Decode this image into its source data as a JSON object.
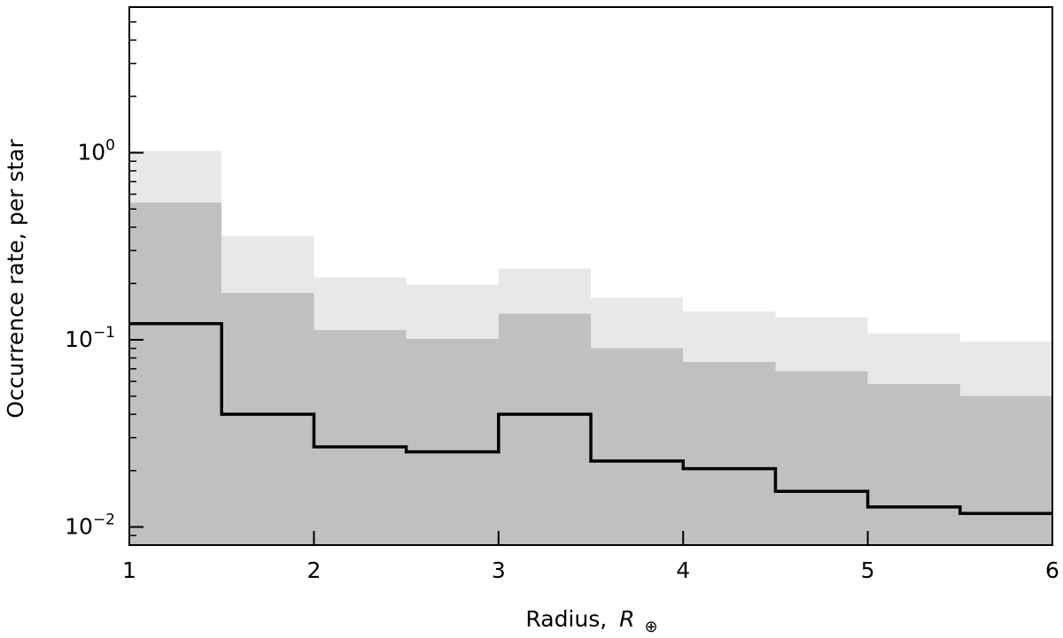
{
  "chart_data": {
    "type": "step",
    "xlabel": "Radius,",
    "xlabel_symbol": "R",
    "xlabel_subscript": "⊕",
    "ylabel": "Occurrence rate, per star",
    "xlim": [
      1,
      6
    ],
    "ylim": [
      0.008,
      6
    ],
    "yscale": "log",
    "grid": false,
    "x_ticks": [
      1,
      2,
      3,
      4,
      5,
      6
    ],
    "x_tick_labels": [
      "1",
      "2",
      "3",
      "4",
      "5",
      "6"
    ],
    "y_major_ticks": [
      {
        "value": 0.01,
        "base": "10",
        "exp": "−2"
      },
      {
        "value": 0.1,
        "base": "10",
        "exp": "−1"
      },
      {
        "value": 1,
        "base": "10",
        "exp": "0"
      }
    ],
    "bin_edges": [
      1.0,
      1.5,
      2.0,
      2.5,
      3.0,
      3.5,
      4.0,
      4.5,
      5.0,
      5.5,
      6.0
    ],
    "series": [
      {
        "role": "outer_band",
        "color": "#e8e8e8",
        "lower": [
          0.012,
          0.008,
          0.008,
          0.008,
          0.008,
          0.008,
          0.008,
          0.008,
          0.008,
          0.008
        ],
        "upper": [
          1.02,
          0.36,
          0.215,
          0.198,
          0.24,
          0.168,
          0.142,
          0.132,
          0.108,
          0.098
        ]
      },
      {
        "role": "inner_band",
        "color": "#c0c0c0",
        "lower": [
          0.008,
          0.008,
          0.008,
          0.008,
          0.008,
          0.008,
          0.008,
          0.008,
          0.008,
          0.008
        ],
        "upper": [
          0.54,
          0.178,
          0.113,
          0.101,
          0.138,
          0.09,
          0.076,
          0.068,
          0.058,
          0.05
        ]
      },
      {
        "role": "median_line",
        "color": "#000000",
        "values": [
          0.122,
          0.04,
          0.0268,
          0.0252,
          0.04,
          0.0225,
          0.0205,
          0.0155,
          0.0128,
          0.0118
        ]
      }
    ]
  }
}
